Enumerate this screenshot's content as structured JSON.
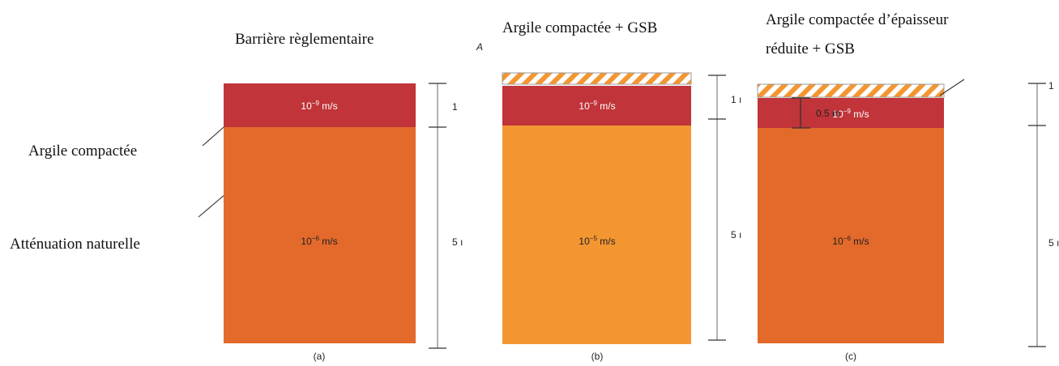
{
  "titles": [
    "Barrière règlementaire",
    "Argile compactée + GSB",
    "Argile compactée d’épaisseur",
    "réduite + GSB"
  ],
  "stray_mark": "A",
  "left_labels": [
    "Argile compactée",
    "Atténuation naturelle"
  ],
  "panels": [
    {
      "caption": "(a)",
      "layers": [
        {
          "base": "10",
          "exp": "−9",
          "unit": "m/s"
        },
        {
          "base": "10",
          "exp": "−6",
          "unit": "m/s"
        }
      ],
      "scale_labels": [
        "1",
        "5 ı"
      ]
    },
    {
      "caption": "(b)",
      "layers": [
        {
          "base": "10",
          "exp": "−9",
          "unit": "m/s"
        },
        {
          "base": "10",
          "exp": "−5",
          "unit": "m/s"
        }
      ],
      "scale_labels": [
        "1 ı",
        "5 ı"
      ]
    },
    {
      "caption": "(c)",
      "layers": [
        {
          "base": "10",
          "exp": "−9",
          "unit": "m/s"
        },
        {
          "base": "10",
          "exp": "−6",
          "unit": "m/s"
        }
      ],
      "scale_labels": [
        "1",
        "5 ı"
      ]
    }
  ],
  "thickness_label": "0.5 m"
}
